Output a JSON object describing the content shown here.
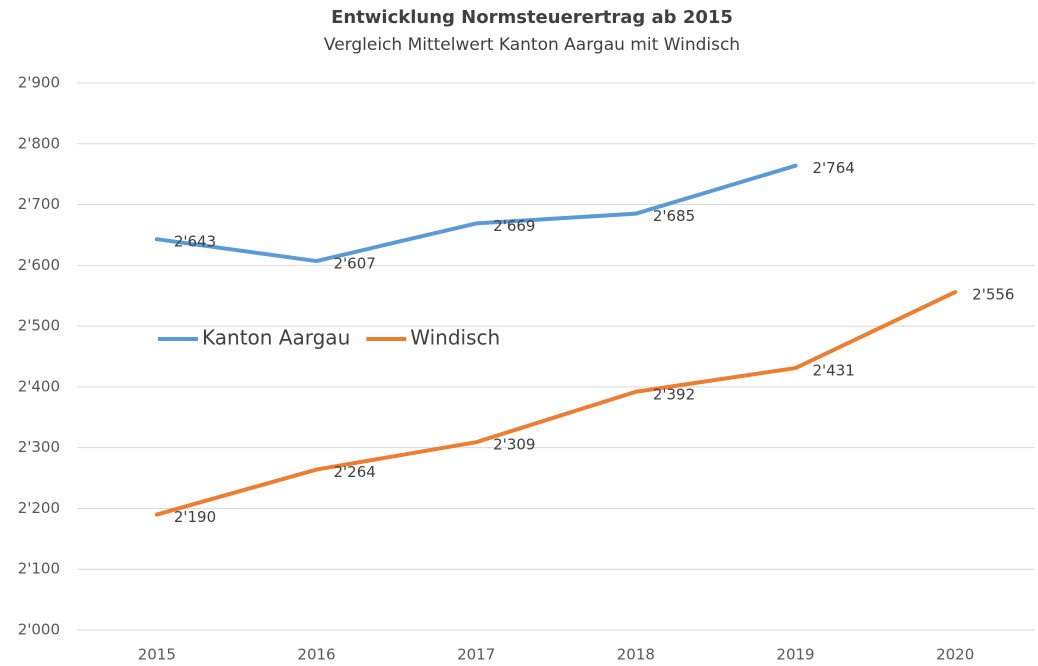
{
  "chart_data": {
    "type": "line",
    "title": "Entwicklung Normsteuerertrag ab 2015",
    "subtitle": "Vergleich Mittelwert Kanton Aargau mit Windisch",
    "categories": [
      "2015",
      "2016",
      "2017",
      "2018",
      "2019",
      "2020"
    ],
    "series": [
      {
        "name": "Kanton Aargau",
        "color": "#5b9bd5",
        "values": [
          2643,
          2607,
          2669,
          2685,
          2764,
          null
        ],
        "value_labels": [
          "2'643",
          "2'607",
          "2'669",
          "2'685",
          "2'764",
          null
        ]
      },
      {
        "name": "Windisch",
        "color": "#ed7d31",
        "values": [
          2190,
          2264,
          2309,
          2392,
          2431,
          2556
        ],
        "value_labels": [
          "2'190",
          "2'264",
          "2'309",
          "2'392",
          "2'431",
          "2'556"
        ]
      }
    ],
    "ylim": [
      2000,
      2900
    ],
    "yticks": [
      {
        "value": 2000,
        "label": "2'000"
      },
      {
        "value": 2100,
        "label": "2'100"
      },
      {
        "value": 2200,
        "label": "2'200"
      },
      {
        "value": 2300,
        "label": "2'300"
      },
      {
        "value": 2400,
        "label": "2'400"
      },
      {
        "value": 2500,
        "label": "2'500"
      },
      {
        "value": 2600,
        "label": "2'600"
      },
      {
        "value": 2700,
        "label": "2'700"
      },
      {
        "value": 2800,
        "label": "2'800"
      },
      {
        "value": 2900,
        "label": "2'900"
      }
    ],
    "grid": true,
    "legend": "left"
  }
}
